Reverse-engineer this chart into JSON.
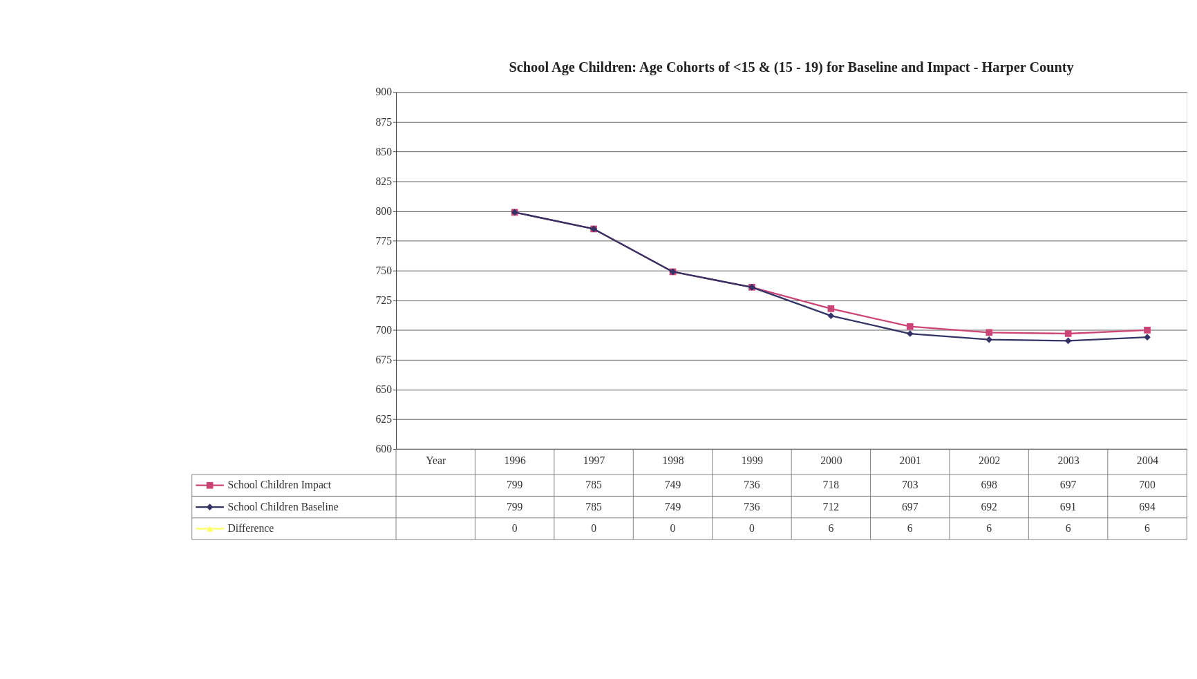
{
  "chart_data": {
    "type": "line",
    "title": "School Age Children: Age Cohorts of <15 & (15 - 19) for Baseline and Impact - Harper County",
    "categories": [
      "Year",
      "1996",
      "1997",
      "1998",
      "1999",
      "2000",
      "2001",
      "2002",
      "2003",
      "2004"
    ],
    "series": [
      {
        "name": "School Children Impact",
        "color": "#cc4477",
        "marker": "square",
        "values": [
          null,
          799,
          785,
          749,
          736,
          718,
          703,
          698,
          697,
          700
        ]
      },
      {
        "name": "School Children Baseline",
        "color": "#333366",
        "marker": "diamond",
        "values": [
          null,
          799,
          785,
          749,
          736,
          712,
          697,
          692,
          691,
          694
        ]
      },
      {
        "name": "Difference",
        "color": "#ffff66",
        "marker": "triangle",
        "values": [
          null,
          null,
          null,
          null,
          null,
          null,
          null,
          null,
          null,
          null
        ],
        "value_labels": [
          null,
          "0",
          "0",
          "0",
          "0",
          "6",
          "6",
          "6",
          "6",
          "6"
        ]
      }
    ],
    "ylim": [
      600,
      900
    ],
    "yticks": [
      600,
      625,
      650,
      675,
      700,
      725,
      750,
      775,
      800,
      825,
      850,
      875,
      900
    ],
    "grid": "y",
    "legend": "bottom left",
    "data_labels": true
  }
}
